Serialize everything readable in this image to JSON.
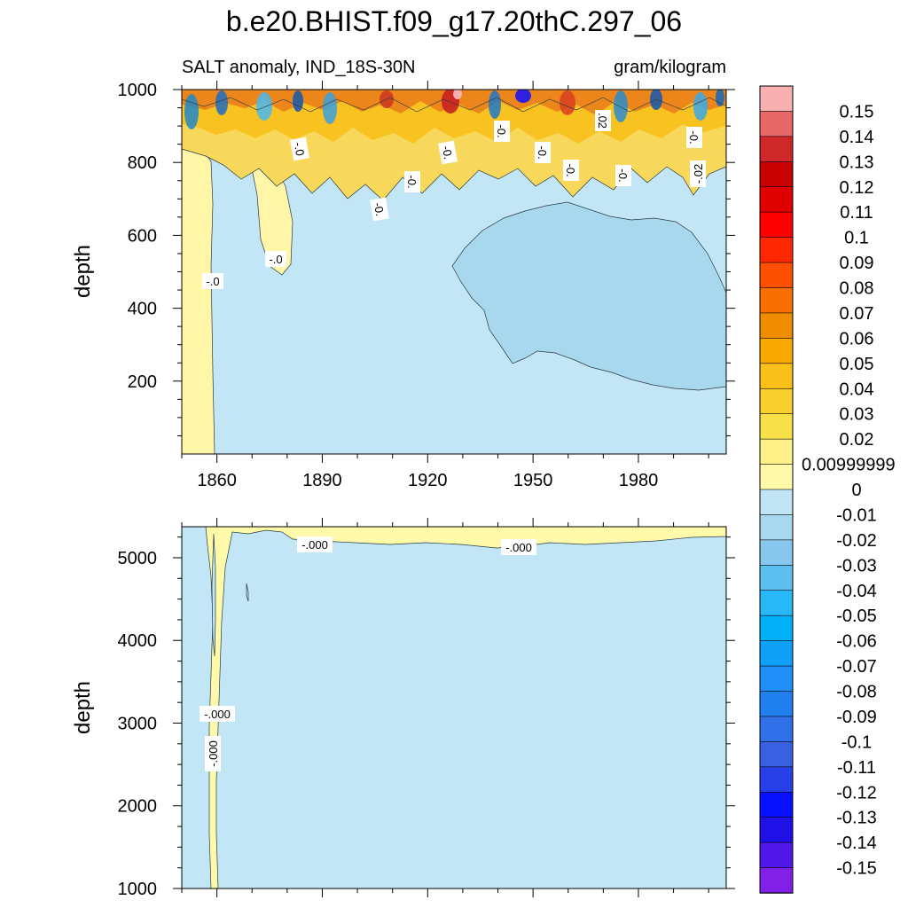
{
  "title": "b.e20.BHIST.f09_g17.20thC.297_06",
  "chart_data": [
    {
      "type": "heatmap",
      "panel": "upper",
      "left_label": "SALT anomaly, IND_18S-30N",
      "right_label": "gram/kilogram",
      "xlabel": "",
      "ylabel": "depth",
      "xlim": [
        1850,
        2005
      ],
      "ylim": [
        1000,
        0
      ],
      "x_ticks": [
        1860,
        1890,
        1920,
        1950,
        1980
      ],
      "y_ticks": [
        200,
        400,
        600,
        800,
        1000
      ],
      "x_tick_labels": [
        "1860",
        "1890",
        "1920",
        "1950",
        "1980"
      ],
      "y_tick_labels": [
        "200",
        "400",
        "600",
        "800",
        "1000"
      ],
      "contour_labels": [
        "-.0",
        "-.0",
        "-.0",
        "-0.",
        "-0.",
        "-0.",
        "-0.",
        "-0.",
        "-0.",
        ".02",
        "-0.",
        "-.02",
        "-0."
      ]
    },
    {
      "type": "heatmap",
      "panel": "lower",
      "xlabel": "",
      "ylabel": "depth",
      "xlim": [
        1850,
        2005
      ],
      "ylim": [
        5375,
        1000
      ],
      "x_ticks": [
        1860,
        1890,
        1920,
        1950,
        1980
      ],
      "y_ticks": [
        1000,
        2000,
        3000,
        4000,
        5000
      ],
      "y_tick_labels": [
        "1000",
        "2000",
        "3000",
        "4000",
        "5000"
      ],
      "contour_labels": [
        "-.000",
        "-.000",
        "-.000",
        "-.000"
      ]
    }
  ],
  "colorbar": {
    "labels": [
      "0.15",
      "0.14",
      "0.13",
      "0.12",
      "0.11",
      "0.1",
      "0.09",
      "0.08",
      "0.07",
      "0.06",
      "0.05",
      "0.04",
      "0.03",
      "0.02",
      "0.00999999",
      "0",
      "-0.01",
      "-0.02",
      "-0.03",
      "-0.04",
      "-0.05",
      "-0.06",
      "-0.07",
      "-0.08",
      "-0.09",
      "-0.1",
      "-0.11",
      "-0.12",
      "-0.13",
      "-0.14",
      "-0.15"
    ],
    "colors": [
      "#f8b0b0",
      "#e86868",
      "#d02828",
      "#c80000",
      "#e00000",
      "#ff0000",
      "#ff2800",
      "#ff5000",
      "#f87000",
      "#f08c00",
      "#f8a800",
      "#f8c018",
      "#f8d030",
      "#f8e048",
      "#fff088",
      "#fffaaa",
      "#c0e4f4",
      "#a8d8f0",
      "#88c8ee",
      "#5cbff0",
      "#28b8f8",
      "#00b0f8",
      "#10a0f8",
      "#2090f8",
      "#2080f0",
      "#3070e8",
      "#3860e0",
      "#2840e8",
      "#0810ff",
      "#2010e8",
      "#5018e8",
      "#8020e8"
    ]
  }
}
